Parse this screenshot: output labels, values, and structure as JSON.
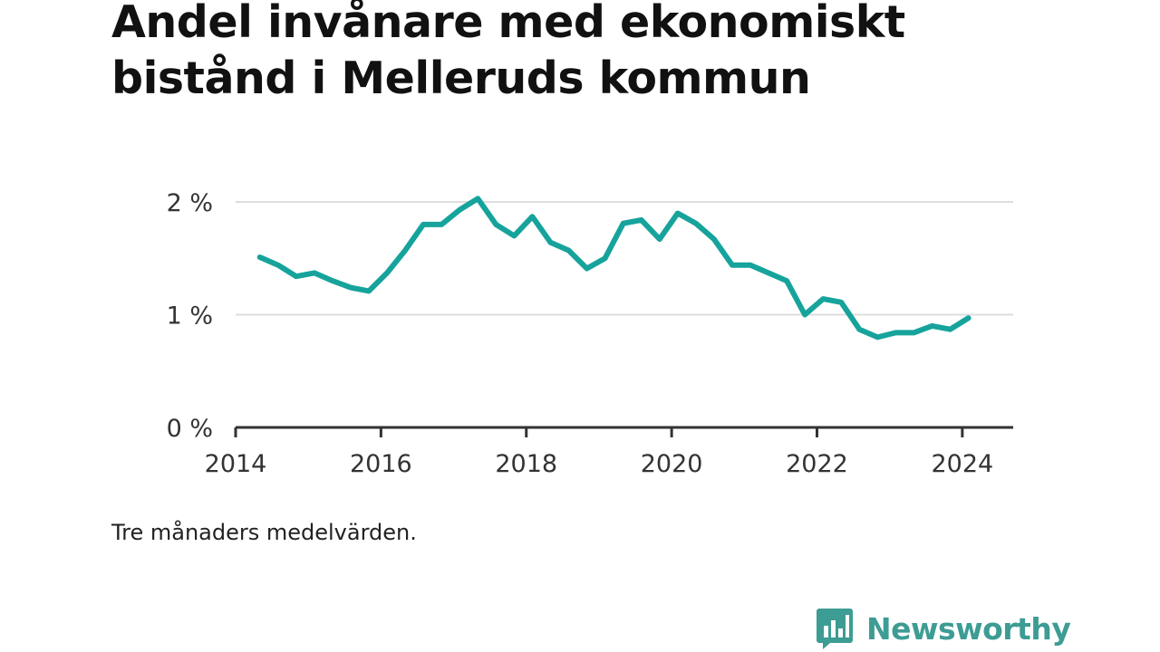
{
  "title": "Andel invånare med ekonomiskt bistånd i Melleruds kommun",
  "note": "Tre månaders medelvärden.",
  "brand": {
    "name": "Newsworthy",
    "color": "#3d9c94",
    "icon": "bar-chart-speech-bubble-icon"
  },
  "colors": {
    "line": "#16a39c",
    "grid": "#dddddd",
    "axis": "#333333"
  },
  "chart_data": {
    "type": "line",
    "title": "Andel invånare med ekonomiskt bistånd i Melleruds kommun",
    "xlabel": "",
    "ylabel": "",
    "xlim": [
      2014.0,
      2024.7
    ],
    "ylim": [
      0,
      2
    ],
    "x_ticks": [
      2014,
      2016,
      2018,
      2020,
      2022,
      2024
    ],
    "x_tick_labels": [
      "2014",
      "2016",
      "2018",
      "2020",
      "2022",
      "2024"
    ],
    "y_ticks": [
      0,
      1,
      2
    ],
    "y_tick_labels": [
      "0 %",
      "1 %",
      "2 %"
    ],
    "grid": true,
    "legend": "none",
    "series": [
      {
        "x": [
          "2014-05",
          "2014-08",
          "2014-11",
          "2015-02",
          "2015-05",
          "2015-08",
          "2015-11",
          "2016-02",
          "2016-05",
          "2016-08",
          "2016-11",
          "2017-02",
          "2017-05",
          "2017-08",
          "2017-11",
          "2018-02",
          "2018-05",
          "2018-08",
          "2018-11",
          "2019-02",
          "2019-05",
          "2019-08",
          "2019-11",
          "2020-02",
          "2020-05",
          "2020-08",
          "2020-11",
          "2021-02",
          "2021-05",
          "2021-08",
          "2021-11",
          "2022-02",
          "2022-05",
          "2022-08",
          "2022-11",
          "2023-02",
          "2023-05",
          "2023-08",
          "2023-11",
          "2024-02"
        ],
        "values": [
          1.51,
          1.44,
          1.34,
          1.37,
          1.3,
          1.24,
          1.21,
          1.37,
          1.57,
          1.8,
          1.8,
          1.93,
          2.03,
          1.8,
          1.7,
          1.87,
          1.64,
          1.57,
          1.41,
          1.5,
          1.81,
          1.84,
          1.67,
          1.9,
          1.81,
          1.67,
          1.44,
          1.44,
          1.37,
          1.3,
          1.0,
          1.14,
          1.11,
          0.87,
          0.8,
          0.84,
          0.84,
          0.9,
          0.87,
          0.97
        ]
      }
    ]
  }
}
